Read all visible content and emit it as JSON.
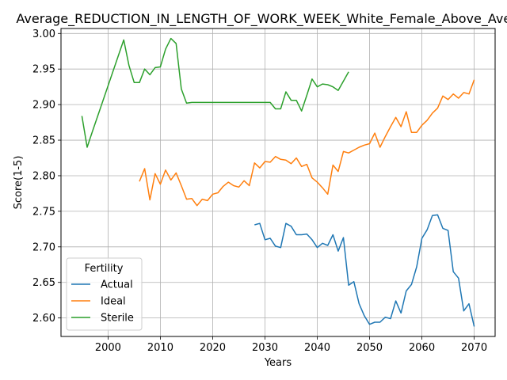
{
  "chart_data": {
    "type": "line",
    "title": "Average_REDUCTION_IN_LENGTH_OF_WORK_WEEK_White_Female_Above_Average",
    "xlabel": "Years",
    "ylabel": "Score(1-5)",
    "xlim": [
      1991,
      2074
    ],
    "ylim": [
      2.574,
      3.007
    ],
    "xticks": [
      2000,
      2010,
      2020,
      2030,
      2040,
      2050,
      2060,
      2070
    ],
    "yticks": [
      2.6,
      2.65,
      2.7,
      2.75,
      2.8,
      2.85,
      2.9,
      2.95,
      3.0
    ],
    "grid": true,
    "legend": {
      "title": "Fertility",
      "position": "lower-left"
    },
    "series": [
      {
        "name": "Actual",
        "color": "#1f77b4",
        "x": [
          2028,
          2029,
          2030,
          2031,
          2032,
          2033,
          2034,
          2035,
          2036,
          2037,
          2038,
          2039,
          2040,
          2041,
          2042,
          2043,
          2044,
          2045,
          2046,
          2047,
          2048,
          2049,
          2050,
          2051,
          2052,
          2053,
          2054,
          2055,
          2056,
          2057,
          2058,
          2059,
          2060,
          2061,
          2062,
          2063,
          2064,
          2065,
          2066,
          2067,
          2068,
          2069,
          2070
        ],
        "y": [
          2.731,
          2.733,
          2.71,
          2.712,
          2.701,
          2.699,
          2.733,
          2.729,
          2.717,
          2.717,
          2.718,
          2.71,
          2.699,
          2.705,
          2.702,
          2.717,
          2.694,
          2.713,
          2.646,
          2.651,
          2.62,
          2.603,
          2.591,
          2.594,
          2.594,
          2.601,
          2.599,
          2.624,
          2.607,
          2.638,
          2.647,
          2.672,
          2.712,
          2.724,
          2.744,
          2.745,
          2.726,
          2.723,
          2.665,
          2.656,
          2.61,
          2.62,
          2.588
        ]
      },
      {
        "name": "Ideal",
        "color": "#ff7f0e",
        "x": [
          2006,
          2007,
          2008,
          2009,
          2010,
          2011,
          2012,
          2013,
          2014,
          2015,
          2016,
          2017,
          2018,
          2019,
          2020,
          2021,
          2022,
          2023,
          2024,
          2025,
          2026,
          2027,
          2028,
          2029,
          2030,
          2031,
          2032,
          2033,
          2034,
          2035,
          2036,
          2037,
          2038,
          2039,
          2040,
          2041,
          2042,
          2043,
          2044,
          2045,
          2046,
          2047,
          2048,
          2049,
          2050,
          2051,
          2052,
          2053,
          2054,
          2055,
          2056,
          2057,
          2058,
          2059,
          2060,
          2061,
          2062,
          2063,
          2064,
          2065,
          2066,
          2067,
          2068,
          2069,
          2070
        ],
        "y": [
          2.792,
          2.81,
          2.766,
          2.803,
          2.788,
          2.808,
          2.794,
          2.804,
          2.786,
          2.767,
          2.768,
          2.758,
          2.767,
          2.765,
          2.774,
          2.776,
          2.785,
          2.791,
          2.786,
          2.784,
          2.793,
          2.786,
          2.818,
          2.811,
          2.82,
          2.819,
          2.827,
          2.823,
          2.822,
          2.817,
          2.825,
          2.813,
          2.816,
          2.797,
          2.791,
          2.783,
          2.774,
          2.815,
          2.806,
          2.834,
          2.832,
          2.836,
          2.84,
          2.843,
          2.845,
          2.86,
          2.84,
          2.855,
          2.869,
          2.882,
          2.869,
          2.89,
          2.861,
          2.861,
          2.871,
          2.878,
          2.888,
          2.895,
          2.912,
          2.907,
          2.915,
          2.909,
          2.917,
          2.915,
          2.935
        ]
      },
      {
        "name": "Sterile",
        "color": "#2ca02c",
        "x": [
          1995,
          1996,
          1997,
          2003,
          2004,
          2005,
          2006,
          2007,
          2008,
          2009,
          2010,
          2011,
          2012,
          2013,
          2014,
          2015,
          2016,
          2017,
          2018,
          2019,
          2020,
          2021,
          2022,
          2023,
          2024,
          2025,
          2026,
          2027,
          2028,
          2029,
          2030,
          2031,
          2032,
          2033,
          2034,
          2035,
          2036,
          2037,
          2038,
          2039,
          2040,
          2041,
          2042,
          2043,
          2044,
          2045,
          2046
        ],
        "y": [
          2.884,
          2.84,
          2.862,
          2.991,
          2.955,
          2.931,
          2.931,
          2.95,
          2.942,
          2.952,
          2.953,
          2.978,
          2.993,
          2.986,
          2.922,
          2.902,
          2.903,
          2.903,
          2.903,
          2.903,
          2.903,
          2.903,
          2.903,
          2.903,
          2.903,
          2.903,
          2.903,
          2.903,
          2.903,
          2.903,
          2.903,
          2.903,
          2.894,
          2.894,
          2.918,
          2.906,
          2.906,
          2.891,
          2.913,
          2.936,
          2.925,
          2.929,
          2.928,
          2.925,
          2.92,
          2.933,
          2.946
        ]
      }
    ]
  }
}
